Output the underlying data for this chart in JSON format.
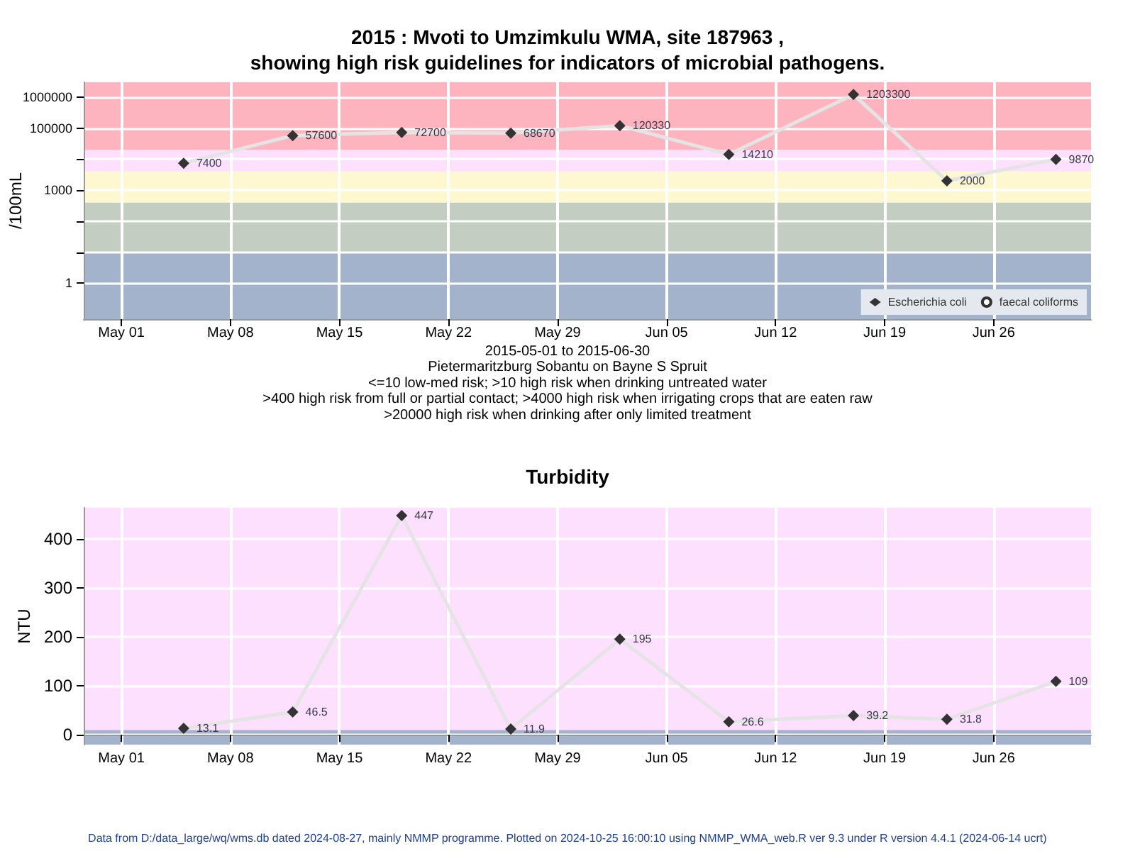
{
  "chart_data": [
    {
      "type": "line",
      "title": "2015 : Mvoti to Umzimkulu WMA, site 187963 ,\nshowing high risk guidelines for indicators of microbial pathogens.",
      "xlabel": "2015-05-01 to 2015-06-30",
      "ylabel": "/100mL",
      "x": [
        "2015-05-05",
        "2015-05-12",
        "2015-05-19",
        "2015-05-26",
        "2015-06-02",
        "2015-06-09",
        "2015-06-17",
        "2015-06-23",
        "2015-06-30"
      ],
      "series": [
        {
          "name": "Escherichia coli",
          "color": "#333333",
          "marker": "diamond",
          "values": [
            7400,
            57600,
            72700,
            68670,
            120330,
            14210,
            1203300,
            2000,
            9870
          ]
        },
        {
          "name": "faecal coliforms",
          "color": "#333333",
          "marker": "circle",
          "values": [
            null,
            null,
            null,
            null,
            null,
            null,
            null,
            null,
            null
          ]
        }
      ],
      "log": "y",
      "ylim": [
        0.07,
        3000000
      ],
      "yticks": [
        1,
        {
          "value": 10,
          "label": null
        },
        {
          "value": 100,
          "label": null
        },
        1000,
        {
          "value": 10000,
          "label": null
        },
        100000,
        1000000
      ],
      "xlim": [
        "2015-04-28T14:00",
        "2015-07-02T06:00"
      ],
      "xticks": [
        {
          "value": "2015-05-01",
          "label": "May 01"
        },
        {
          "value": "2015-05-08",
          "label": "May 08"
        },
        {
          "value": "2015-05-15",
          "label": "May 15"
        },
        {
          "value": "2015-05-22",
          "label": "May 22"
        },
        {
          "value": "2015-05-29",
          "label": "May 29"
        },
        {
          "value": "2015-06-05",
          "label": "Jun 05"
        },
        {
          "value": "2015-06-12",
          "label": "Jun 12"
        },
        {
          "value": "2015-06-19",
          "label": "Jun 19"
        },
        {
          "value": "2015-06-26",
          "label": "Jun 26"
        }
      ],
      "bands": [
        {
          "axis": "y",
          "from": 0.07,
          "to": 10,
          "color": "#a2b3cb"
        },
        {
          "axis": "y",
          "from": 10,
          "to": 400,
          "color": "#c4cdc1"
        },
        {
          "axis": "y",
          "from": 400,
          "to": 4000,
          "color": "#fdf8d0"
        },
        {
          "axis": "y",
          "from": 4000,
          "to": 20000,
          "color": "#fde0fe"
        },
        {
          "axis": "y",
          "from": 20000,
          "to": 3000000,
          "color": "#feb4be"
        }
      ],
      "grid": true,
      "legend": "bottom right",
      "data_labels": true,
      "annotations": [
        "Pietermaritzburg Sobantu on Bayne S Spruit",
        "<=10 low-med risk; >10 high risk when drinking untreated water",
        ">400 high risk from full or partial contact; >4000 high risk when irrigating crops that are eaten raw",
        ">20000 high risk when drinking after only limited treatment"
      ]
    },
    {
      "type": "line",
      "title": "Turbidity",
      "ylabel": "NTU",
      "x": [
        "2015-05-05",
        "2015-05-12",
        "2015-05-19",
        "2015-05-26",
        "2015-06-02",
        "2015-06-09",
        "2015-06-17",
        "2015-06-23",
        "2015-06-30"
      ],
      "series": [
        {
          "color": "#333333",
          "marker": "diamond",
          "values": [
            13.1,
            46.5,
            447,
            11.9,
            195,
            26.6,
            39.2,
            31.8,
            109
          ]
        }
      ],
      "ylim": [
        -20,
        463
      ],
      "yticks": [
        0,
        100,
        200,
        300,
        400
      ],
      "xlim": [
        "2015-04-28T14:00",
        "2015-07-02T06:00"
      ],
      "xticks": [
        {
          "value": "2015-05-01",
          "label": "May 01"
        },
        {
          "value": "2015-05-08",
          "label": "May 08"
        },
        {
          "value": "2015-05-15",
          "label": "May 15"
        },
        {
          "value": "2015-05-22",
          "label": "May 22"
        },
        {
          "value": "2015-05-29",
          "label": "May 29"
        },
        {
          "value": "2015-06-05",
          "label": "Jun 05"
        },
        {
          "value": "2015-06-12",
          "label": "Jun 12"
        },
        {
          "value": "2015-06-19",
          "label": "Jun 19"
        },
        {
          "value": "2015-06-26",
          "label": "Jun 26"
        }
      ],
      "bands": [
        {
          "axis": "y",
          "from": -20,
          "to": 10,
          "color": "#a2b3cb"
        },
        {
          "axis": "y",
          "from": 10,
          "to": 463,
          "color": "#fde0fe"
        }
      ],
      "grid": true,
      "legend": false,
      "data_labels": true,
      "annotations": [
        "Data from D:/data_large/wq/wms.db dated 2024-08-27, mainly NMMP programme. Plotted on 2024-10-25 16:00:10 using NMMP_WMA_web.R ver 9.3 under R version 4.4.1 (2024-06-14 ucrt)"
      ]
    }
  ]
}
